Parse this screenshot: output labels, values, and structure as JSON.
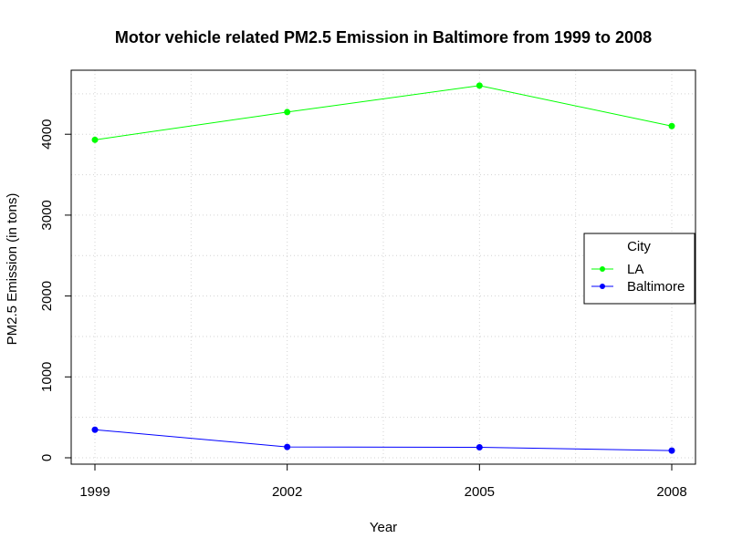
{
  "chart_data": {
    "type": "line",
    "title": "Motor vehicle related PM2.5 Emission in Baltimore from 1999 to 2008",
    "xlabel": "Year",
    "ylabel": "PM2.5 Emission (in tons)",
    "x": [
      1999,
      2002,
      2005,
      2008
    ],
    "x_tick_labels": [
      "1999",
      "2002",
      "2005",
      "2008"
    ],
    "y_ticks": [
      0,
      1000,
      2000,
      3000,
      4000
    ],
    "y_tick_labels": [
      "0",
      "1000",
      "2000",
      "3000",
      "4000"
    ],
    "xlim": [
      1999,
      2008
    ],
    "ylim": [
      0,
      4600
    ],
    "grid": true,
    "legend": {
      "title": "City",
      "placement": "right"
    },
    "series": [
      {
        "name": "LA",
        "color": "#00ff00",
        "values": [
          3931,
          4274,
          4601,
          4101
        ]
      },
      {
        "name": "Baltimore",
        "color": "#0000ff",
        "values": [
          347,
          134,
          130,
          89
        ]
      }
    ]
  }
}
